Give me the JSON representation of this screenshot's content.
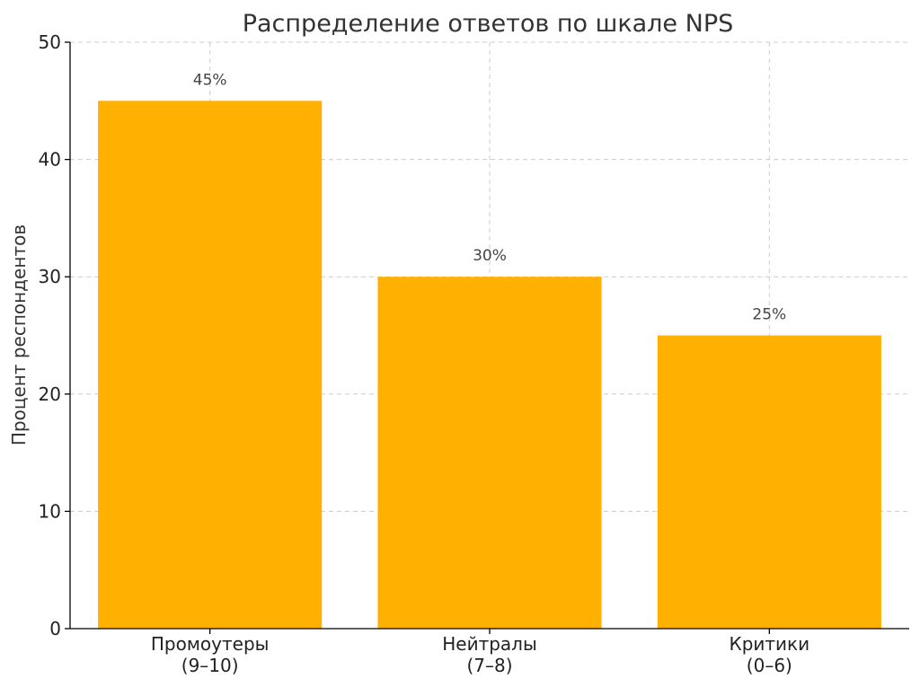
{
  "chart_data": {
    "type": "bar",
    "title": "Распределение ответов по шкале NPS",
    "xlabel": "",
    "ylabel": "Процент респондентов",
    "categories": [
      [
        "Промоутеры",
        "(9–10)"
      ],
      [
        "Нейтралы",
        "(7–8)"
      ],
      [
        "Критики",
        "(0–6)"
      ]
    ],
    "values": [
      45,
      30,
      25
    ],
    "data_labels": [
      "45%",
      "30%",
      "25%"
    ],
    "ylim": [
      0,
      50
    ],
    "yticks": [
      0,
      10,
      20,
      30,
      40,
      50
    ],
    "grid": true,
    "bar_color": "#FFB000"
  }
}
